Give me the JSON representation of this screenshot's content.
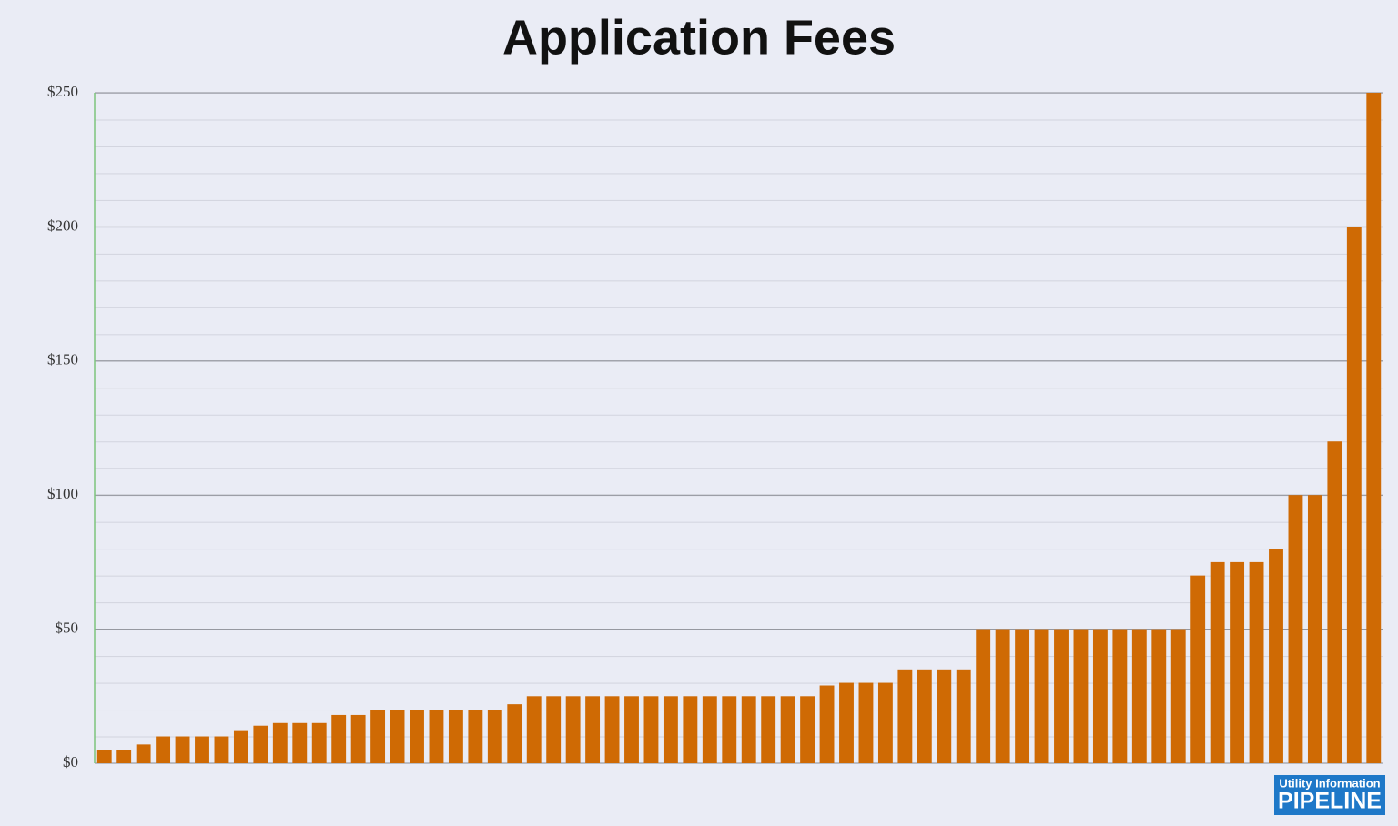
{
  "chart_data": {
    "type": "bar",
    "title": "Application Fees",
    "values": [
      5,
      5,
      7,
      10,
      10,
      10,
      10,
      12,
      14,
      15,
      15,
      15,
      18,
      18,
      20,
      20,
      20,
      20,
      20,
      20,
      20,
      22,
      25,
      25,
      25,
      25,
      25,
      25,
      25,
      25,
      25,
      25,
      25,
      25,
      25,
      25,
      25,
      29,
      30,
      30,
      30,
      35,
      35,
      35,
      35,
      50,
      50,
      50,
      50,
      50,
      50,
      50,
      50,
      50,
      50,
      50,
      70,
      75,
      75,
      75,
      80,
      100,
      100,
      120,
      200,
      250
    ],
    "color": "#cf6a04",
    "ylim": [
      0,
      250
    ],
    "yticks": [
      {
        "value": 0,
        "label": "$0"
      },
      {
        "value": 50,
        "label": "$50"
      },
      {
        "value": 100,
        "label": "$100"
      },
      {
        "value": 150,
        "label": "$150"
      },
      {
        "value": 200,
        "label": "$200"
      },
      {
        "value": 250,
        "label": "$250"
      }
    ],
    "grid": true
  },
  "logo": {
    "line1": "Utility Information",
    "line2": "PIPELINE"
  }
}
